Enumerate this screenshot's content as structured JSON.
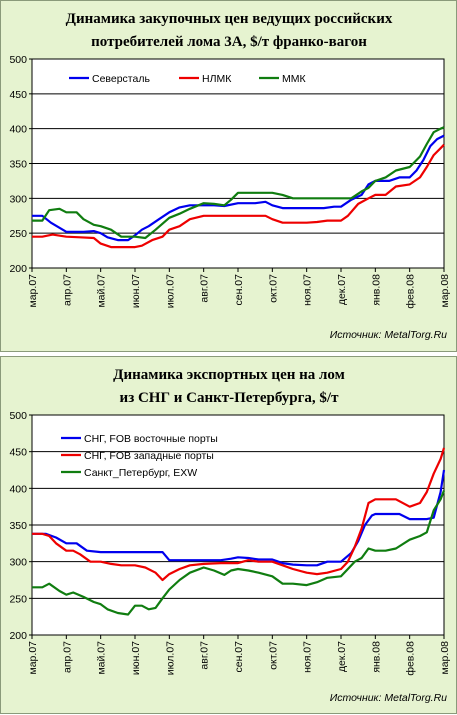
{
  "chart_data": [
    {
      "type": "line",
      "title_lines": [
        "Динамика закупочных цен ведущих российских",
        "потребителей лома 3А, $/т франко-вагон"
      ],
      "ylim": [
        200,
        500
      ],
      "yticks": [
        200,
        250,
        300,
        350,
        400,
        450,
        500
      ],
      "x_start": 0,
      "x_end": 12,
      "categories": [
        "мар.07",
        "апр.07",
        "май.07",
        "июн.07",
        "июл.07",
        "авг.07",
        "сен.07",
        "окт.07",
        "ноя.07",
        "дек.07",
        "янв.08",
        "фев.08",
        "мар.08"
      ],
      "source": "Источник: MetalTorg.Ru",
      "series": [
        {
          "name": "Северсталь",
          "color": "#0000ee",
          "x": [
            0,
            0.3,
            0.55,
            1.0,
            1.5,
            1.8,
            2.0,
            2.2,
            2.5,
            2.8,
            3.0,
            3.2,
            3.4,
            3.7,
            4.0,
            4.3,
            4.6,
            5.0,
            5.3,
            5.6,
            6.0,
            6.5,
            6.8,
            7.0,
            7.3,
            7.6,
            8.0,
            8.5,
            8.8,
            9.0,
            9.3,
            9.6,
            9.8,
            10.0,
            10.4,
            10.7,
            11.0,
            11.2,
            11.4,
            11.6,
            11.8,
            12.0
          ],
          "y": [
            275,
            275,
            265,
            252,
            252,
            253,
            250,
            244,
            240,
            240,
            247,
            255,
            260,
            270,
            280,
            287,
            290,
            290,
            290,
            289,
            293,
            293,
            295,
            290,
            286,
            286,
            286,
            286,
            288,
            288,
            298,
            305,
            320,
            325,
            325,
            330,
            330,
            340,
            355,
            375,
            385,
            390
          ]
        },
        {
          "name": "НЛМК",
          "color": "#ee0000",
          "x": [
            0,
            0.3,
            0.6,
            1.0,
            1.4,
            1.8,
            2.0,
            2.3,
            2.6,
            3.0,
            3.2,
            3.5,
            3.8,
            4.0,
            4.3,
            4.6,
            5.0,
            5.5,
            6.0,
            6.5,
            6.8,
            7.0,
            7.3,
            7.6,
            8.0,
            8.3,
            8.6,
            9.0,
            9.2,
            9.5,
            9.8,
            10.0,
            10.3,
            10.6,
            11.0,
            11.3,
            11.5,
            11.7,
            11.9,
            12.0
          ],
          "y": [
            245,
            245,
            248,
            245,
            244,
            243,
            235,
            230,
            230,
            230,
            232,
            240,
            245,
            255,
            260,
            270,
            275,
            275,
            275,
            275,
            275,
            270,
            265,
            265,
            265,
            266,
            268,
            268,
            275,
            292,
            300,
            305,
            305,
            317,
            320,
            330,
            345,
            362,
            372,
            377
          ]
        },
        {
          "name": "ММК",
          "color": "#107d10",
          "x": [
            0,
            0.3,
            0.5,
            0.8,
            1.0,
            1.3,
            1.5,
            1.8,
            2.0,
            2.3,
            2.6,
            3.0,
            3.3,
            3.6,
            4.0,
            4.3,
            4.6,
            5.0,
            5.3,
            5.6,
            5.8,
            6.0,
            6.3,
            6.7,
            7.0,
            7.3,
            7.6,
            8.0,
            8.3,
            8.6,
            9.0,
            9.3,
            9.6,
            9.8,
            10.0,
            10.3,
            10.6,
            11.0,
            11.3,
            11.5,
            11.7,
            11.9,
            12.0
          ],
          "y": [
            268,
            268,
            283,
            285,
            280,
            280,
            270,
            262,
            260,
            255,
            245,
            245,
            243,
            255,
            272,
            278,
            285,
            293,
            292,
            290,
            298,
            308,
            308,
            308,
            308,
            305,
            300,
            300,
            300,
            300,
            300,
            300,
            310,
            315,
            325,
            330,
            340,
            345,
            360,
            378,
            395,
            400,
            402
          ]
        }
      ]
    },
    {
      "type": "line",
      "title_lines": [
        "Динамика экспортных цен на лом",
        "из СНГ и  Санкт-Петербурга, $/т"
      ],
      "ylim": [
        200,
        500
      ],
      "yticks": [
        200,
        250,
        300,
        350,
        400,
        450,
        500
      ],
      "x_start": 0,
      "x_end": 12,
      "categories": [
        "мар.07",
        "апр.07",
        "май.07",
        "июн.07",
        "июл.07",
        "авг.07",
        "сен.07",
        "окт.07",
        "ноя.07",
        "дек.07",
        "янв.08",
        "фев.08",
        "мар.08"
      ],
      "source": "Источник: MetalTorg.Ru",
      "series": [
        {
          "name": "СНГ, FOB восточные порты",
          "color": "#0000ee",
          "x": [
            0,
            0.4,
            0.7,
            1.0,
            1.3,
            1.6,
            2.0,
            2.5,
            3.0,
            3.5,
            3.8,
            4.0,
            4.5,
            5.0,
            5.5,
            5.8,
            6.0,
            6.3,
            6.6,
            7.0,
            7.3,
            7.6,
            8.0,
            8.3,
            8.6,
            9.0,
            9.3,
            9.5,
            9.7,
            9.9,
            10.0,
            10.3,
            10.7,
            11.0,
            11.3,
            11.5,
            11.7,
            11.9,
            12.0
          ],
          "y": [
            338,
            338,
            333,
            325,
            325,
            315,
            313,
            313,
            313,
            313,
            313,
            302,
            302,
            302,
            302,
            304,
            306,
            305,
            303,
            303,
            298,
            296,
            295,
            295,
            300,
            300,
            312,
            328,
            350,
            363,
            365,
            365,
            365,
            358,
            358,
            358,
            360,
            395,
            425
          ]
        },
        {
          "name": "СНГ, FOB западные порты",
          "color": "#ee0000",
          "x": [
            0,
            0.3,
            0.5,
            0.7,
            1.0,
            1.2,
            1.4,
            1.7,
            2.0,
            2.3,
            2.6,
            3.0,
            3.3,
            3.6,
            3.8,
            4.0,
            4.3,
            4.6,
            5.0,
            5.5,
            6.0,
            6.3,
            6.6,
            7.0,
            7.3,
            7.6,
            8.0,
            8.3,
            8.6,
            9.0,
            9.2,
            9.4,
            9.6,
            9.8,
            10.0,
            10.3,
            10.6,
            11.0,
            11.3,
            11.5,
            11.7,
            11.9,
            12.0
          ],
          "y": [
            338,
            338,
            335,
            325,
            315,
            315,
            310,
            300,
            300,
            297,
            295,
            295,
            292,
            285,
            275,
            283,
            290,
            295,
            297,
            298,
            298,
            302,
            300,
            300,
            295,
            290,
            285,
            283,
            285,
            290,
            300,
            320,
            345,
            380,
            385,
            385,
            385,
            375,
            380,
            395,
            420,
            440,
            455
          ]
        },
        {
          "name": "Санкт_Петербург, EXW",
          "color": "#107d10",
          "x": [
            0,
            0.3,
            0.5,
            0.8,
            1.0,
            1.2,
            1.5,
            1.8,
            2.0,
            2.2,
            2.5,
            2.8,
            3.0,
            3.2,
            3.4,
            3.6,
            3.8,
            4.0,
            4.3,
            4.6,
            5.0,
            5.3,
            5.6,
            5.8,
            6.0,
            6.3,
            6.6,
            7.0,
            7.3,
            7.6,
            8.0,
            8.3,
            8.6,
            9.0,
            9.2,
            9.4,
            9.6,
            9.8,
            10.0,
            10.3,
            10.6,
            11.0,
            11.3,
            11.5,
            11.7,
            11.9,
            12.0
          ],
          "y": [
            265,
            265,
            270,
            260,
            255,
            258,
            252,
            245,
            242,
            235,
            230,
            228,
            240,
            240,
            235,
            237,
            250,
            262,
            275,
            285,
            292,
            288,
            282,
            288,
            290,
            288,
            285,
            280,
            270,
            270,
            268,
            272,
            278,
            280,
            290,
            300,
            305,
            318,
            315,
            315,
            318,
            330,
            335,
            340,
            370,
            385,
            397
          ]
        }
      ]
    }
  ]
}
